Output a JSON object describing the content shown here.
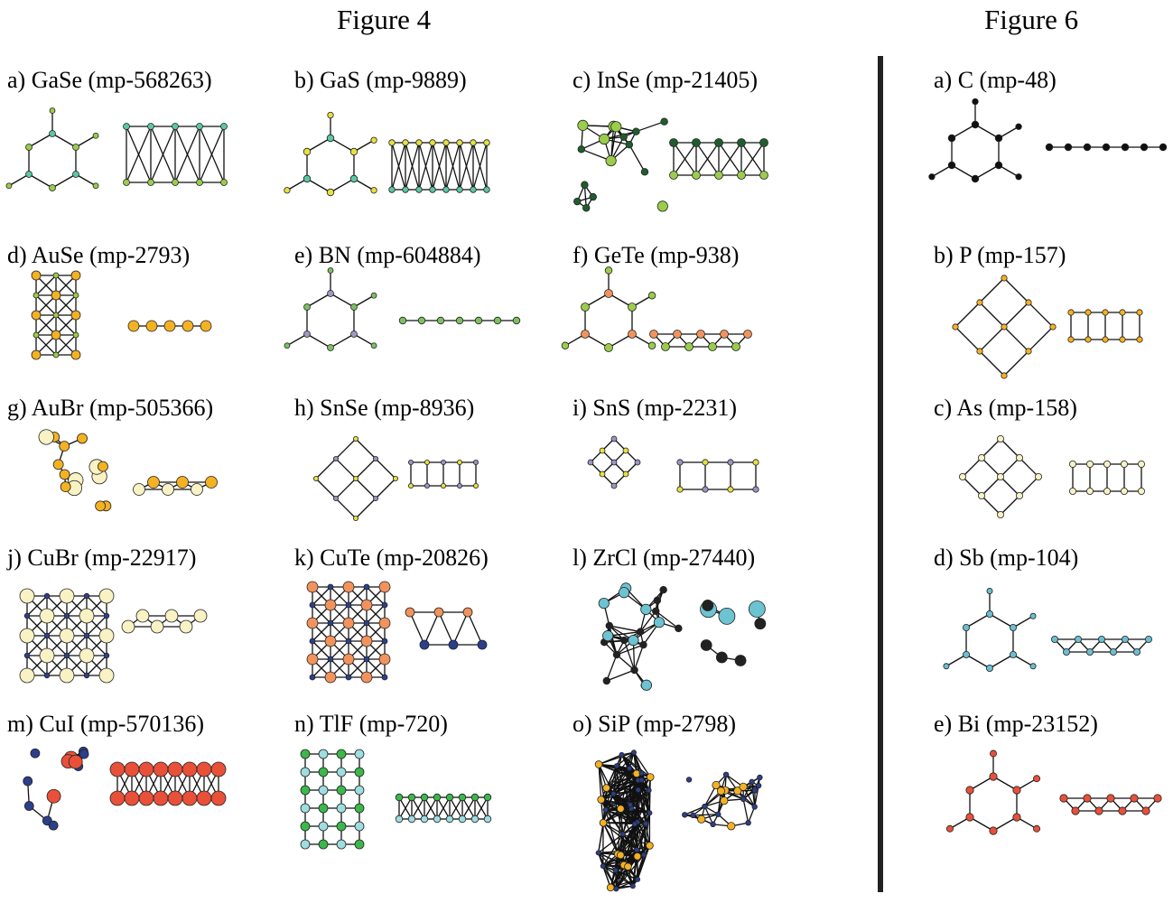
{
  "figure4": {
    "title": "Figure 4",
    "panels": [
      {
        "label": "a) GaSe (mp-568263)",
        "colors": [
          "#9acd4a",
          "#5cc7a8"
        ]
      },
      {
        "label": "b) GaS (mp-9889)",
        "colors": [
          "#5cc7a8",
          "#e6e040"
        ]
      },
      {
        "label": "c) InSe (mp-21405)",
        "colors": [
          "#1e5e2e",
          "#9acd4a"
        ]
      },
      {
        "label": "d) AuSe (mp-2793)",
        "colors": [
          "#f4b223",
          "#9acd4a"
        ]
      },
      {
        "label": "e) BN (mp-604884)",
        "colors": [
          "#a098c4",
          "#7cc063"
        ]
      },
      {
        "label": "f) GeTe (mp-938)",
        "colors": [
          "#f2935e",
          "#9acd4a"
        ]
      },
      {
        "label": "g) AuBr (mp-505366)",
        "colors": [
          "#f4b223",
          "#f8f2c4"
        ]
      },
      {
        "label": "h) SnSe  (mp-8936)",
        "colors": [
          "#9a94c4",
          "#e6e040"
        ]
      },
      {
        "label": "i) SnS (mp-2231)",
        "colors": [
          "#9a94c4",
          "#e6e040"
        ]
      },
      {
        "label": "j) CuBr (mp-22917)",
        "colors": [
          "#f8f2c4",
          "#2b3f8c"
        ]
      },
      {
        "label": "k) CuTe (mp-20826)",
        "colors": [
          "#f2935e",
          "#2b3f8c"
        ]
      },
      {
        "label": "l) ZrCl (mp-27440)",
        "colors": [
          "#222222",
          "#6cc3d1"
        ]
      },
      {
        "label": "m) CuI (mp-570136)",
        "colors": [
          "#e8503a",
          "#2b3f8c"
        ]
      },
      {
        "label": "n) TlF (mp-720)",
        "colors": [
          "#3cb84a",
          "#9fdde0"
        ]
      },
      {
        "label": "o) SiP (mp-2798)",
        "colors": [
          "#2b3f8c",
          "#f4b223"
        ]
      }
    ]
  },
  "figure6": {
    "title": "Figure 6",
    "panels": [
      {
        "label": "a) C (mp-48)",
        "colors": [
          "#111111",
          "#111111"
        ]
      },
      {
        "label": "b) P (mp-157)",
        "colors": [
          "#f4b223",
          "#f4b223"
        ]
      },
      {
        "label": "c) As (mp-158)",
        "colors": [
          "#f8f2c4",
          "#f8f2c4"
        ]
      },
      {
        "label": "d) Sb (mp-104)",
        "colors": [
          "#6cbfd0",
          "#6cbfd0"
        ]
      },
      {
        "label": "e) Bi (mp-23152)",
        "colors": [
          "#e8503a",
          "#e8503a"
        ]
      }
    ]
  }
}
